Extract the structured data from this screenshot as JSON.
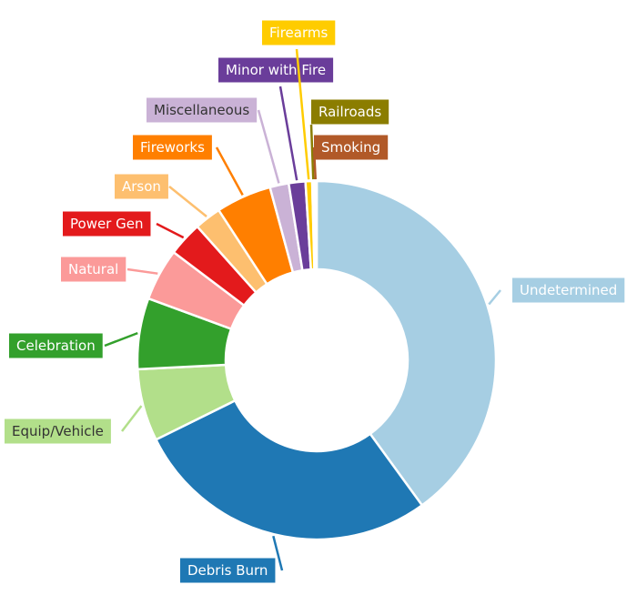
{
  "chart_data": {
    "type": "pie",
    "title": "",
    "categories": [
      "Undetermined",
      "Debris Burn",
      "Equip/Vehicle",
      "Celebration",
      "Natural",
      "Power Gen",
      "Arson",
      "Fireworks",
      "Miscellaneous",
      "Minor with Fire",
      "Firearms",
      "Railroads",
      "Smoking"
    ],
    "values": [
      40.0,
      27.7,
      6.5,
      6.4,
      4.7,
      3.1,
      2.4,
      5.0,
      1.7,
      1.5,
      0.6,
      0.2,
      0.2
    ],
    "colors": [
      "#a6cee3",
      "#1f78b4",
      "#b2df8a",
      "#33a02c",
      "#fb9a99",
      "#e31a1c",
      "#fdbf6f",
      "#ff7f00",
      "#cab2d6",
      "#6a3d9a",
      "#ffcc00",
      "#8b7d00",
      "#b15928"
    ],
    "label_text_colors": [
      "#ffffff",
      "#ffffff",
      "#333333",
      "#ffffff",
      "#ffffff",
      "#ffffff",
      "#ffffff",
      "#ffffff",
      "#333333",
      "#ffffff",
      "#ffffff",
      "#ffffff",
      "#ffffff"
    ],
    "donut": true,
    "legend": "none"
  }
}
